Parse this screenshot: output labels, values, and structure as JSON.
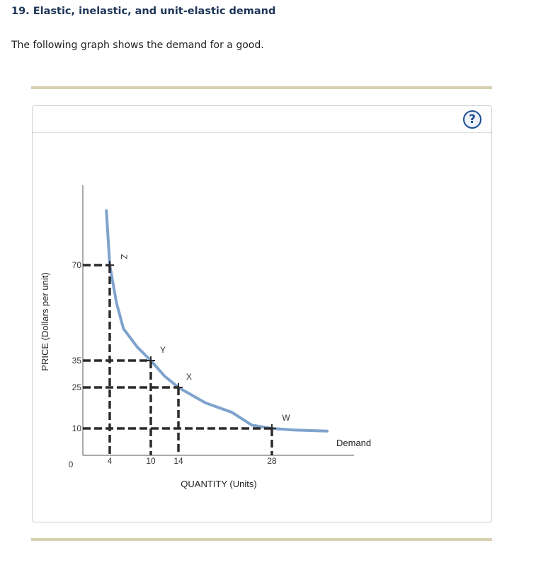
{
  "question": {
    "title": "19. Elastic, inelastic, and unit-elastic demand",
    "prompt": "The following graph shows the demand for a good."
  },
  "help_button": {
    "label": "?",
    "icon": "help-icon"
  },
  "colors": {
    "curve": "#7fa3cc",
    "guides": "#2b2b2b",
    "axis": "#555555",
    "rule": "#d7d0b3"
  },
  "chart_data": {
    "type": "line",
    "xlabel": "QUANTITY (Units)",
    "ylabel": "PRICE (Dollars per unit)",
    "origin_label": "0",
    "x_ticks": [
      4,
      10,
      14,
      28
    ],
    "y_ticks": [
      70,
      35,
      25,
      10
    ],
    "series": [
      {
        "name": "Demand",
        "x": [
          3.5,
          3.7,
          4,
          5,
          6,
          8,
          10,
          12,
          14,
          18,
          22,
          25,
          28,
          30,
          33
        ],
        "y": [
          80,
          76,
          70,
          56,
          46.7,
          40,
          35,
          29.2,
          25,
          19.4,
          15.9,
          11.2,
          10,
          9.4,
          9
        ]
      }
    ],
    "points": [
      {
        "label": "Z",
        "x": 4,
        "y": 70
      },
      {
        "label": "Y",
        "x": 10,
        "y": 35
      },
      {
        "label": "X",
        "x": 14,
        "y": 25
      },
      {
        "label": "W",
        "x": 28,
        "y": 10
      }
    ],
    "grid": false
  }
}
